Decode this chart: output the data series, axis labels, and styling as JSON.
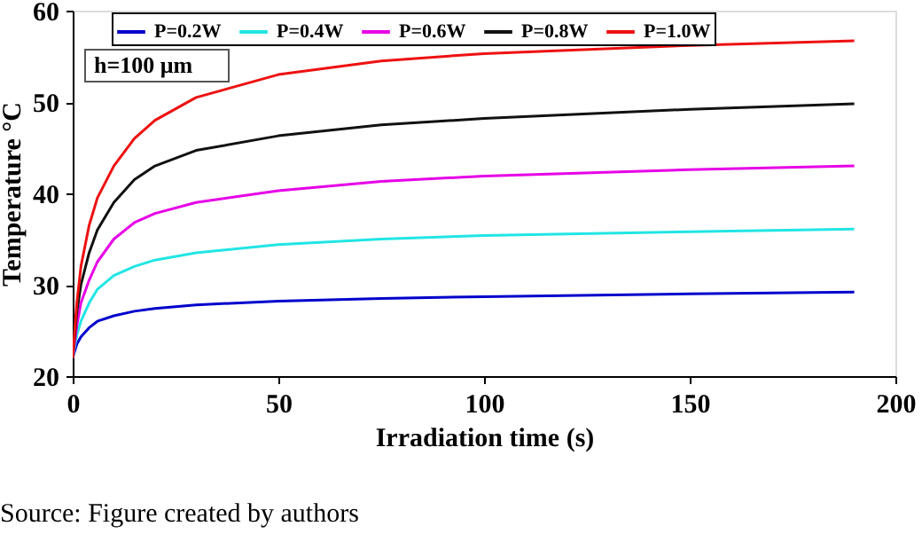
{
  "chart_data": {
    "type": "line",
    "xlabel": "Irradiation time (s)",
    "ylabel": "Temperature °C",
    "x": [
      0,
      1,
      2,
      4,
      6,
      10,
      15,
      20,
      30,
      50,
      75,
      100,
      150,
      190
    ],
    "series": [
      {
        "name": "P=0.2W",
        "color": "#0000cc",
        "values": [
          22,
          23.5,
          24.3,
          25.3,
          26,
          26.6,
          27.1,
          27.4,
          27.8,
          28.2,
          28.5,
          28.7,
          29,
          29.2
        ]
      },
      {
        "name": "P=0.4W",
        "color": "#22e5e5",
        "values": [
          22,
          24.5,
          26,
          28,
          29.5,
          31,
          32,
          32.7,
          33.5,
          34.4,
          35,
          35.4,
          35.8,
          36.1
        ]
      },
      {
        "name": "P=0.6W",
        "color": "#e600e6",
        "values": [
          22,
          25.5,
          28,
          30.5,
          32.5,
          35,
          36.8,
          37.8,
          39,
          40.3,
          41.3,
          41.9,
          42.6,
          43
        ]
      },
      {
        "name": "P=0.8W",
        "color": "#111111",
        "values": [
          22,
          27,
          30,
          33.5,
          36,
          39,
          41.5,
          43,
          44.7,
          46.3,
          47.5,
          48.2,
          49.2,
          49.8
        ]
      },
      {
        "name": "P=1.0W",
        "color": "#ee1111",
        "values": [
          22,
          28,
          32,
          36.5,
          39.5,
          43,
          46,
          48,
          50.5,
          53,
          54.5,
          55.3,
          56.2,
          56.7
        ]
      }
    ],
    "xlim": [
      0,
      200
    ],
    "xticks": [
      0,
      50,
      100,
      150,
      200
    ],
    "ylim": [
      20,
      60
    ],
    "yticks": [
      20,
      30,
      40,
      50,
      60
    ],
    "grid": false,
    "legend": "top",
    "marker": "none",
    "line_style": "solid",
    "annotations": [
      "h=100 μm",
      "Source: Figure created by authors"
    ]
  }
}
